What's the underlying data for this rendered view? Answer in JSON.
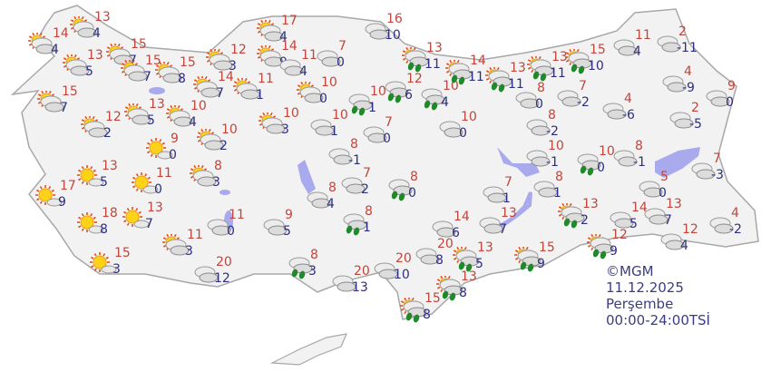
{
  "credit": {
    "source": "©MGM",
    "date": "11.12.2025",
    "day": "Perşembe",
    "period": "00:00-24:00TSİ"
  },
  "colors": {
    "max_temp": "#c2453c",
    "min_temp": "#2e2e80",
    "land": "#f2f2f2",
    "border": "#a8a8a8",
    "lake": "#a9a9ee",
    "rain": "#1f8a2a"
  },
  "icon_types": [
    "sunny",
    "partly-cloudy",
    "cloudy",
    "rain",
    "partly-cloudy-rain"
  ],
  "stations": [
    {
      "icon": "partly-cloudy",
      "max": 14,
      "min": 4
    },
    {
      "icon": "partly-cloudy",
      "max": 13,
      "min": 4
    },
    {
      "icon": "partly-cloudy",
      "max": 13,
      "min": 5
    },
    {
      "icon": "partly-cloudy",
      "max": 15,
      "min": 7
    },
    {
      "icon": "partly-cloudy",
      "max": 15,
      "min": 7
    },
    {
      "icon": "partly-cloudy",
      "max": 12,
      "min": 2
    },
    {
      "icon": "partly-cloudy",
      "max": 15,
      "min": 7
    },
    {
      "icon": "partly-cloudy",
      "max": 15,
      "min": 8
    },
    {
      "icon": "partly-cloudy",
      "max": 13,
      "min": 5
    },
    {
      "icon": "partly-cloudy",
      "max": 10,
      "min": 4
    },
    {
      "icon": "partly-cloudy",
      "max": 10,
      "min": 2
    },
    {
      "icon": "sunny",
      "max": 9,
      "min": 0
    },
    {
      "icon": "partly-cloudy",
      "max": 14,
      "min": 7
    },
    {
      "icon": "partly-cloudy",
      "max": 12,
      "min": 3
    },
    {
      "icon": "partly-cloudy",
      "max": 17,
      "min": 4
    },
    {
      "icon": "partly-cloudy",
      "max": 14,
      "min": 9
    },
    {
      "icon": "partly-cloudy",
      "max": 11,
      "min": 1
    },
    {
      "icon": "cloudy",
      "max": 11,
      "min": 4
    },
    {
      "icon": "cloudy",
      "max": 7,
      "min": 0
    },
    {
      "icon": "partly-cloudy",
      "max": 10,
      "min": 0
    },
    {
      "icon": "partly-cloudy",
      "max": 10,
      "min": 3
    },
    {
      "icon": "cloudy",
      "max": 10,
      "min": 1
    },
    {
      "icon": "cloudy",
      "max": 16,
      "min": 10
    },
    {
      "icon": "partly-cloudy-rain",
      "max": 13,
      "min": 11
    },
    {
      "icon": "rain",
      "max": 10,
      "min": 1
    },
    {
      "icon": "rain",
      "max": 12,
      "min": 6
    },
    {
      "icon": "rain",
      "max": 10,
      "min": 4
    },
    {
      "icon": "cloudy",
      "max": 7,
      "min": 0
    },
    {
      "icon": "cloudy",
      "max": 10,
      "min": 0
    },
    {
      "icon": "partly-cloudy-rain",
      "max": 14,
      "min": 11
    },
    {
      "icon": "partly-cloudy-rain",
      "max": 13,
      "min": 11
    },
    {
      "icon": "partly-cloudy-rain",
      "max": 13,
      "min": 11
    },
    {
      "icon": "partly-cloudy-rain",
      "max": 15,
      "min": 10
    },
    {
      "icon": "cloudy",
      "max": 11,
      "min": 4
    },
    {
      "icon": "cloudy",
      "max": 2,
      "min": -11
    },
    {
      "icon": "cloudy",
      "max": 8,
      "min": 0
    },
    {
      "icon": "cloudy",
      "max": 7,
      "min": -2
    },
    {
      "icon": "cloudy",
      "max": 4,
      "min": -6
    },
    {
      "icon": "cloudy",
      "max": 4,
      "min": -9
    },
    {
      "icon": "cloudy",
      "max": 9,
      "min": 0
    },
    {
      "icon": "cloudy",
      "max": 8,
      "min": -2
    },
    {
      "icon": "cloudy",
      "max": 2,
      "min": -5
    },
    {
      "icon": "sunny",
      "max": 13,
      "min": 5
    },
    {
      "icon": "sunny",
      "max": 17,
      "min": 9
    },
    {
      "icon": "sunny",
      "max": 11,
      "min": 0
    },
    {
      "icon": "partly-cloudy",
      "max": 8,
      "min": 3
    },
    {
      "icon": "sunny",
      "max": 18,
      "min": 8
    },
    {
      "icon": "sunny",
      "max": 13,
      "min": 7
    },
    {
      "icon": "sunny",
      "max": 15,
      "min": 3
    },
    {
      "icon": "partly-cloudy",
      "max": 11,
      "min": 3
    },
    {
      "icon": "cloudy",
      "max": 11,
      "min": 0
    },
    {
      "icon": "cloudy",
      "max": 20,
      "min": 12
    },
    {
      "icon": "cloudy",
      "max": 8,
      "min": -1
    },
    {
      "icon": "cloudy",
      "max": 7,
      "min": 2
    },
    {
      "icon": "rain",
      "max": 8,
      "min": 0
    },
    {
      "icon": "cloudy",
      "max": 8,
      "min": 4
    },
    {
      "icon": "cloudy",
      "max": 9,
      "min": 5
    },
    {
      "icon": "rain",
      "max": 8,
      "min": 1
    },
    {
      "icon": "rain",
      "max": 8,
      "min": 3
    },
    {
      "icon": "cloudy",
      "max": 20,
      "min": 13
    },
    {
      "icon": "cloudy",
      "max": 20,
      "min": 10
    },
    {
      "icon": "cloudy",
      "max": 20,
      "min": 8
    },
    {
      "icon": "partly-cloudy-rain",
      "max": 13,
      "min": 5
    },
    {
      "icon": "partly-cloudy-rain",
      "max": 13,
      "min": 8
    },
    {
      "icon": "partly-cloudy-rain",
      "max": 15,
      "min": 8
    },
    {
      "icon": "cloudy",
      "max": 14,
      "min": 6
    },
    {
      "icon": "cloudy",
      "max": 13,
      "min": 7
    },
    {
      "icon": "cloudy",
      "max": 7,
      "min": 1
    },
    {
      "icon": "cloudy",
      "max": 10,
      "min": -1
    },
    {
      "icon": "rain",
      "max": 10,
      "min": 0
    },
    {
      "icon": "cloudy",
      "max": 8,
      "min": -1
    },
    {
      "icon": "cloudy",
      "max": 8,
      "min": 1
    },
    {
      "icon": "partly-cloudy-rain",
      "max": 13,
      "min": 2
    },
    {
      "icon": "cloudy",
      "max": 5,
      "min": 0
    },
    {
      "icon": "cloudy",
      "max": 7,
      "min": -3
    },
    {
      "icon": "cloudy",
      "max": 14,
      "min": 5
    },
    {
      "icon": "cloudy",
      "max": 13,
      "min": 7
    },
    {
      "icon": "partly-cloudy-rain",
      "max": 15,
      "min": 9
    },
    {
      "icon": "partly-cloudy-rain",
      "max": 12,
      "min": 9
    },
    {
      "icon": "cloudy",
      "max": 12,
      "min": 4
    },
    {
      "icon": "cloudy",
      "max": 4,
      "min": -2
    }
  ]
}
